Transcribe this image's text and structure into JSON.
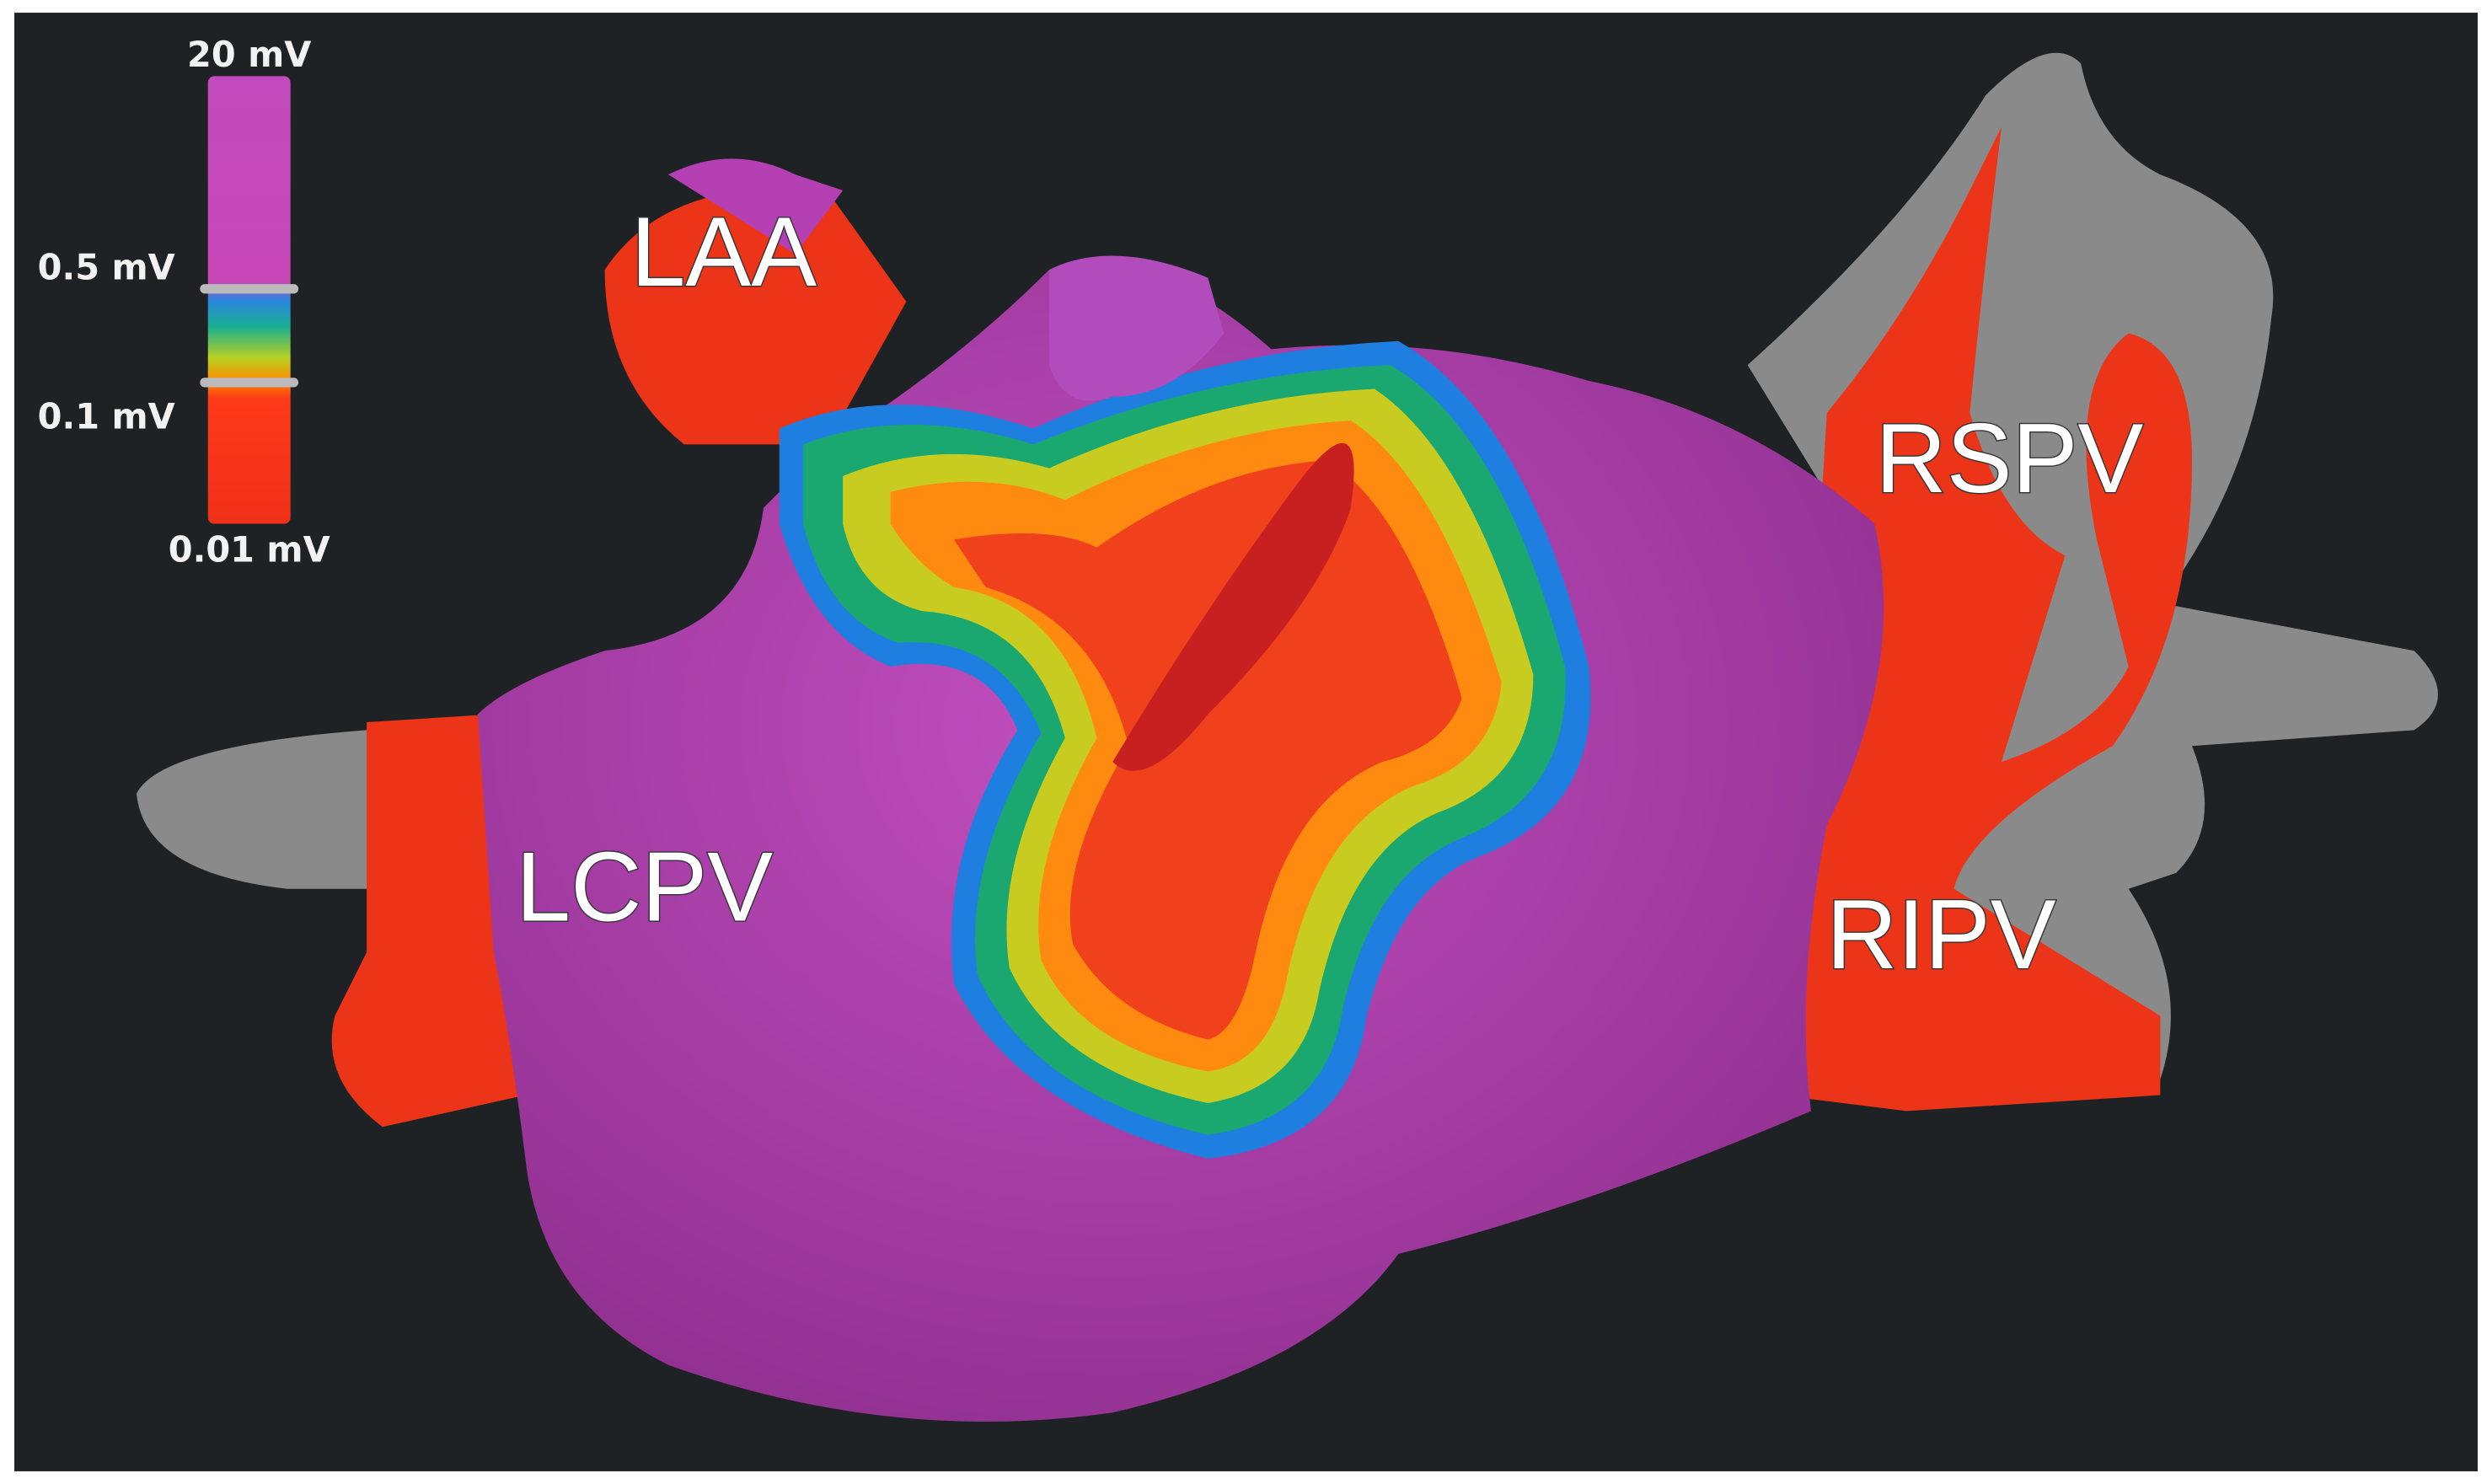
{
  "legend": {
    "labels": [
      "20 mV",
      "0.5 mV",
      "0.1 mV",
      "0.01 mV"
    ]
  },
  "regions": [
    "LAA",
    "LCPV",
    "RSPV",
    "RIPV"
  ]
}
